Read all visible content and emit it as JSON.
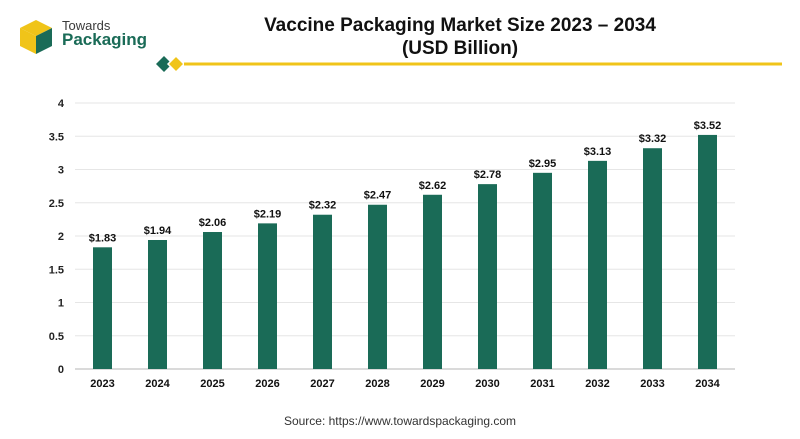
{
  "brand": {
    "line1": "Towards",
    "line2": "Packaging",
    "colors": {
      "green": "#1a6b57",
      "gold": "#f0c419",
      "grey": "#7a7a7a"
    }
  },
  "chart_data": {
    "type": "bar",
    "title": "Vaccine Packaging Market Size 2023 – 2034",
    "subtitle": "(USD Billion)",
    "categories": [
      "2023",
      "2024",
      "2025",
      "2026",
      "2027",
      "2028",
      "2029",
      "2030",
      "2031",
      "2032",
      "2033",
      "2034"
    ],
    "values": [
      1.83,
      1.94,
      2.06,
      2.19,
      2.32,
      2.47,
      2.62,
      2.78,
      2.95,
      3.13,
      3.32,
      3.52
    ],
    "data_labels": [
      "$1.83",
      "$1.94",
      "$2.06",
      "$2.19",
      "$2.32",
      "$2.47",
      "$2.62",
      "$2.78",
      "$2.95",
      "$3.13",
      "$3.32",
      "$3.52"
    ],
    "y_ticks": [
      "0",
      "0.5",
      "1",
      "1.5",
      "2",
      "2.5",
      "3",
      "3.5",
      "4"
    ],
    "ylim": [
      0,
      4
    ],
    "grid": true,
    "bar_color": "#1a6b57"
  },
  "source": "Source: https://www.towardspackaging.com"
}
